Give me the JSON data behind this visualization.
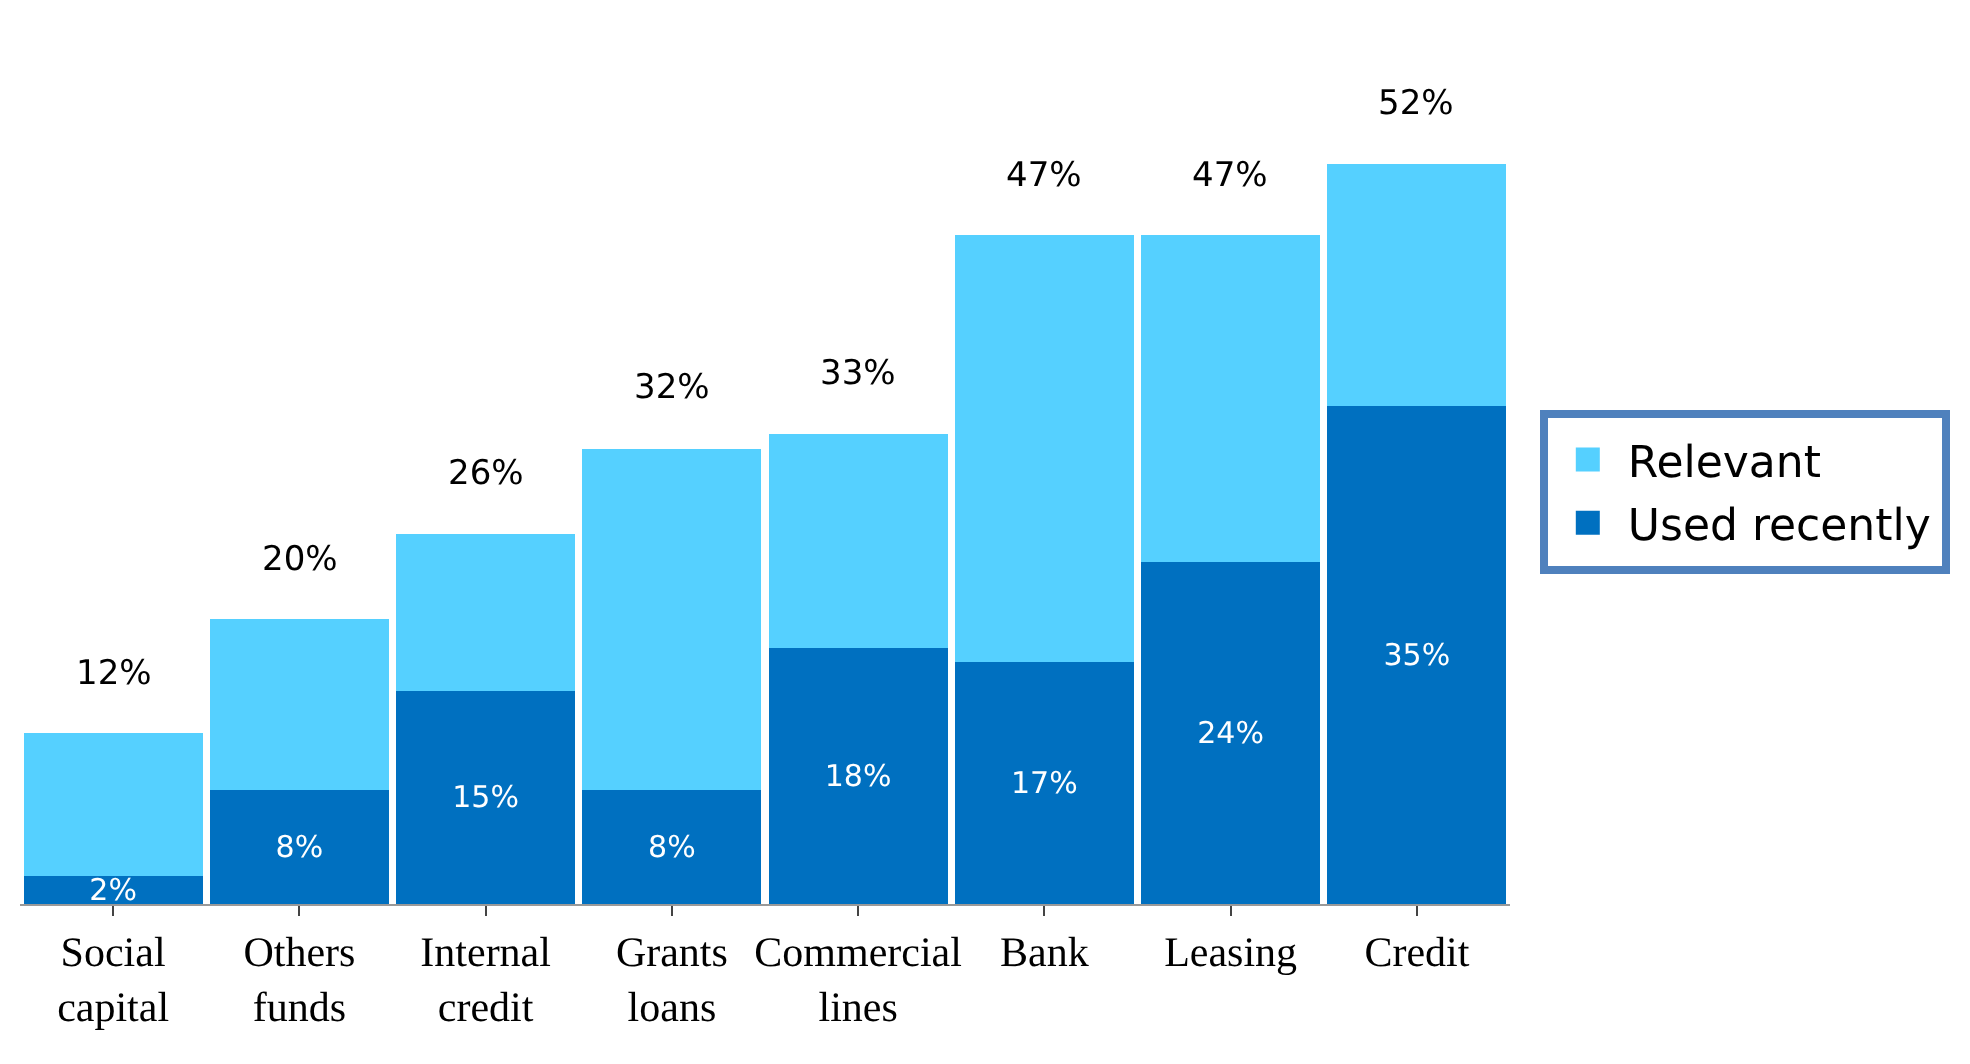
{
  "chart_data": {
    "type": "bar",
    "stacked": true,
    "categories": [
      "Social capital",
      "Others funds",
      "Internal credit",
      "Grants loans",
      "Commercial lines",
      "Bank",
      "Leasing",
      "Credit"
    ],
    "series": [
      {
        "name": "Used recently",
        "color": "#0070c0",
        "values": [
          2,
          8,
          15,
          8,
          18,
          17,
          24,
          35
        ],
        "value_labels": [
          "2%",
          "8%",
          "15%",
          "8%",
          "18%",
          "17%",
          "24%",
          "35%"
        ]
      },
      {
        "name": "Relevant",
        "color": "#55d0ff",
        "values": [
          10,
          12,
          11,
          24,
          15,
          30,
          23,
          17
        ]
      }
    ],
    "totals": [
      "12%",
      "20%",
      "26%",
      "32%",
      "33%",
      "47%",
      "47%",
      "52%"
    ],
    "legend": "right"
  }
}
